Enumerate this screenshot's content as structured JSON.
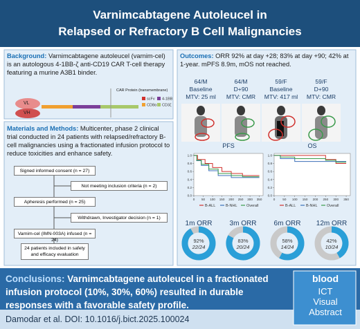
{
  "header": {
    "title_lines": [
      "Varnimcabtagene Autoleucel in",
      "Relapsed or Refractory B Cell Malignancies"
    ]
  },
  "background": {
    "label": "Background:",
    "text": "Varnimcabtagene autoleucel (varnim-cel) is an autologous 4-1BB-ζ anti-CD19 CAR T-cell therapy featuring a murine A3B1 binder.",
    "diagram": {
      "vl": "VL",
      "vh": "VH",
      "protein": "CAR Protein (transmembrane)",
      "legend": [
        {
          "name": "scFv",
          "color": "#d0312d"
        },
        {
          "name": "4-1BB",
          "color": "#7b3f99"
        },
        {
          "name": "CD8α",
          "color": "#f0a030"
        },
        {
          "name": "CD3ζ",
          "color": "#a8c86a"
        }
      ]
    }
  },
  "methods": {
    "label": "Materials and Methods:",
    "text": "Multicenter, phase 2 clinical trial conducted in 24 patients with relapsed/refractory B-cell malignancies using a fractionated infusion protocol to reduce toxicities and enhance safety.",
    "flow": [
      "Signed informed consent (n = 27)",
      "Not meeting inclusion criteria (n = 2)",
      "Apheresis performed (n = 25)",
      "Withdrawn, Investigator decision (n = 1)",
      "Varnim-cel (IMN-003A) infused (n = 24)",
      "24 patients included in safety and efficacy evaluation"
    ]
  },
  "outcomes": {
    "label": "Outcomes:",
    "text": "ORR 92% at day +28; 83% at day +90; 42% at 1-year. mPFS 8.9m, mOS not reached.",
    "scans": [
      {
        "patient": "64/M",
        "time": "Baseline",
        "mtv": "MTV: 25 ml"
      },
      {
        "patient": "64/M",
        "time": "D+90",
        "mtv": "MTV: CMR"
      },
      {
        "patient": "59/F",
        "time": "Baseline",
        "mtv": "MTV: 417 ml"
      },
      {
        "patient": "59/F",
        "time": "D+90",
        "mtv": "MTV: CMR"
      }
    ]
  },
  "survival": {
    "xlim": [
      0,
      370
    ],
    "ylim": [
      0,
      1.05
    ],
    "xticks": [
      0,
      50,
      100,
      150,
      200,
      250,
      300,
      350
    ],
    "yticks": [
      {
        "value": 0,
        "label": "0.0"
      },
      {
        "value": 0.2,
        "label": "0.2"
      },
      {
        "value": 0.4,
        "label": "0.4"
      },
      {
        "value": 0.6,
        "label": "0.6"
      },
      {
        "value": 0.8,
        "label": "0.8"
      },
      {
        "value": 1,
        "label": "1.0"
      }
    ],
    "charts": [
      {
        "title": "PFS",
        "series": [
          {
            "name": "B-ALL",
            "color": "#d0312d",
            "x": [
              0,
              20,
              60,
              100,
              150,
              200,
              260,
              350
            ],
            "values": [
              1,
              0.9,
              0.8,
              0.7,
              0.6,
              0.55,
              0.5,
              0.5
            ]
          },
          {
            "name": "B-NHL",
            "color": "#3a6fb8",
            "x": [
              0,
              15,
              40,
              80,
              130,
              200,
              350
            ],
            "values": [
              1,
              0.87,
              0.75,
              0.62,
              0.5,
              0.45,
              0.45
            ]
          },
          {
            "name": "Overall",
            "color": "#3a9a4a",
            "x": [
              0,
              15,
              40,
              80,
              130,
              200,
              260,
              350
            ],
            "values": [
              1,
              0.88,
              0.78,
              0.66,
              0.55,
              0.5,
              0.47,
              0.47
            ]
          }
        ]
      },
      {
        "title": "OS",
        "series": [
          {
            "name": "B-ALL",
            "color": "#d0312d",
            "x": [
              0,
              250,
              300,
              350
            ],
            "values": [
              1,
              0.9,
              0.8,
              0.8
            ]
          },
          {
            "name": "B-NHL",
            "color": "#3a6fb8",
            "x": [
              0,
              30,
              100,
              350
            ],
            "values": [
              1,
              0.92,
              0.85,
              0.85
            ]
          },
          {
            "name": "Overall",
            "color": "#3a9a4a",
            "x": [
              0,
              30,
              100,
              250,
              300,
              350
            ],
            "values": [
              1,
              0.96,
              0.92,
              0.88,
              0.83,
              0.83
            ]
          }
        ]
      }
    ]
  },
  "response": {
    "color": "#2a9fd8",
    "rest_color": "#c9c9c9",
    "items": [
      {
        "title": "1m ORR",
        "value": 92,
        "value_label": "92%",
        "fraction": "22/24"
      },
      {
        "title": "3m ORR",
        "value": 83,
        "value_label": "83%",
        "fraction": "20/24"
      },
      {
        "title": "6m ORR",
        "value": 58,
        "value_label": "58%",
        "fraction": "14/24"
      },
      {
        "title": "12m ORR",
        "value": 42,
        "value_label": "42%",
        "fraction": "10/24"
      }
    ]
  },
  "conclusions": {
    "label": "Conclusions:",
    "text": "Varnimcabtagene autoleucel in a fractionated infusion protocol (10%, 30%, 60%) resulted in durable responses with a favorable safety profile."
  },
  "footer": {
    "citation": "Damodar et al. DOI: 10.1016/j.bict.2025.100024"
  },
  "logo": {
    "journal": "blood",
    "lines": [
      "ICT",
      "Visual",
      "Abstract"
    ]
  }
}
